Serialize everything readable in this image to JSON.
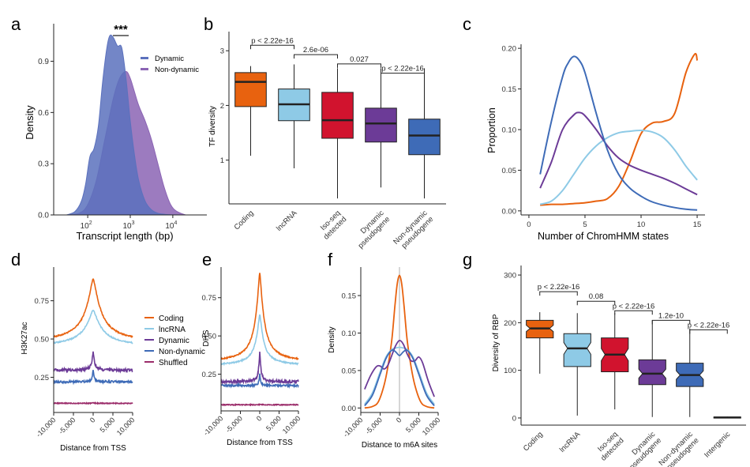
{
  "colors": {
    "coding": "#e8620f",
    "lncrna": "#8ecae6",
    "isoseq": "#d1132e",
    "dynpseudo": "#6c3b97",
    "nondynpseudo": "#3e6bb7",
    "shuffled": "#9b2c6a",
    "intergenic": "#bbbbbb",
    "dynamic_fill": "#5b71bd",
    "nondynamic_fill": "#8b64b4"
  },
  "chart_data": [
    {
      "id": "a",
      "label": "a",
      "type": "area",
      "title": "",
      "xlabel": "Transcript length (bp)",
      "ylabel": "Density",
      "xscale": "log10",
      "xlim": [
        1.2,
        4.8
      ],
      "ylim": [
        0,
        1.12
      ],
      "xticks": [
        {
          "v": 2,
          "base": "10",
          "exp": "2"
        },
        {
          "v": 3,
          "base": "10",
          "exp": "3"
        },
        {
          "v": 4,
          "base": "10",
          "exp": "4"
        }
      ],
      "yticks": [
        "0.0",
        "0.3",
        "0.6",
        "0.9"
      ],
      "yticks_v": [
        0,
        0.3,
        0.6,
        0.9
      ],
      "significance": "***",
      "legend": [
        "Dynamic",
        "Non-dynamic"
      ],
      "series": [
        {
          "name": "Dynamic",
          "x": [
            1.5,
            1.7,
            1.85,
            1.95,
            2.05,
            2.15,
            2.25,
            2.35,
            2.45,
            2.52,
            2.6,
            2.7,
            2.8,
            2.9,
            3.0,
            3.1,
            3.2,
            3.35,
            3.5,
            3.65,
            3.8,
            3.95,
            4.2
          ],
          "values": [
            0,
            0.02,
            0.08,
            0.18,
            0.34,
            0.39,
            0.52,
            0.78,
            0.98,
            1.05,
            1.04,
            0.99,
            0.98,
            0.8,
            0.55,
            0.35,
            0.2,
            0.08,
            0.03,
            0.01,
            0.004,
            0.001,
            0
          ]
        },
        {
          "name": "Non-dynamic",
          "x": [
            1.5,
            1.8,
            2.0,
            2.2,
            2.4,
            2.6,
            2.75,
            2.9,
            3.0,
            3.1,
            3.2,
            3.35,
            3.5,
            3.65,
            3.8,
            3.95,
            4.1,
            4.3
          ],
          "values": [
            0,
            0.01,
            0.06,
            0.2,
            0.44,
            0.68,
            0.8,
            0.84,
            0.8,
            0.72,
            0.64,
            0.55,
            0.44,
            0.3,
            0.16,
            0.06,
            0.02,
            0
          ]
        }
      ]
    },
    {
      "id": "b",
      "label": "b",
      "type": "box",
      "ylabel": "TF diversity",
      "ylim": [
        0.2,
        3.35
      ],
      "yticks": [
        "1",
        "2",
        "3"
      ],
      "yticks_v": [
        1,
        2,
        3
      ],
      "categories": [
        "Coding",
        "lncRNA",
        "Iso-seq detected",
        "Dynamic pseudogene",
        "Non-dynamic pseudogene"
      ],
      "category_lines": [
        [
          "Coding"
        ],
        [
          "lncRNA"
        ],
        [
          "Iso-seq",
          "detected"
        ],
        [
          "Dynamic",
          "pseudogene"
        ],
        [
          "Non-dynamic",
          "pseudogene"
        ]
      ],
      "boxes": [
        {
          "min": 1.08,
          "q1": 1.98,
          "median": 2.43,
          "q3": 2.6,
          "max": 2.72
        },
        {
          "min": 0.85,
          "q1": 1.72,
          "median": 2.02,
          "q3": 2.3,
          "max": 2.75
        },
        {
          "min": 0.3,
          "q1": 1.4,
          "median": 1.73,
          "q3": 2.24,
          "max": 2.68
        },
        {
          "min": 0.5,
          "q1": 1.33,
          "median": 1.67,
          "q3": 1.95,
          "max": 2.68
        },
        {
          "min": 0.3,
          "q1": 1.1,
          "median": 1.45,
          "q3": 1.75,
          "max": 2.68
        }
      ],
      "comparisons": [
        {
          "from": 0,
          "to": 1,
          "text": "p < 2.22e-16",
          "level": 3.1
        },
        {
          "from": 1,
          "to": 2,
          "text": "2.6e-06",
          "level": 2.93
        },
        {
          "from": 2,
          "to": 3,
          "text": "0.027",
          "level": 2.76
        },
        {
          "from": 3,
          "to": 4,
          "text": "p < 2.22e-16",
          "level": 2.59
        }
      ]
    },
    {
      "id": "c",
      "label": "c",
      "type": "line",
      "xlabel": "Number of ChromHMM states",
      "ylabel": "Proportion",
      "xlim": [
        -0.7,
        15.7
      ],
      "ylim": [
        -0.005,
        0.205
      ],
      "xticks": [
        "0",
        "5",
        "10",
        "15"
      ],
      "xticks_v": [
        0,
        5,
        10,
        15
      ],
      "yticks": [
        "0.00",
        "0.05",
        "0.10",
        "0.15",
        "0.20"
      ],
      "yticks_v": [
        0,
        0.05,
        0.1,
        0.15,
        0.2
      ],
      "series": [
        {
          "name": "Coding",
          "color_key": "coding",
          "x": [
            1,
            2,
            3,
            4,
            5,
            6,
            7,
            8,
            9,
            10,
            11,
            12,
            13,
            14,
            14.8,
            15
          ],
          "values": [
            0.007,
            0.008,
            0.008,
            0.009,
            0.01,
            0.012,
            0.015,
            0.03,
            0.06,
            0.095,
            0.108,
            0.11,
            0.12,
            0.17,
            0.193,
            0.185
          ]
        },
        {
          "name": "lncRNA",
          "color_key": "lncrna",
          "x": [
            1,
            2,
            3,
            4,
            5,
            6,
            7,
            8,
            9,
            10,
            11,
            12,
            13,
            14,
            15
          ],
          "values": [
            0.008,
            0.012,
            0.025,
            0.045,
            0.065,
            0.08,
            0.09,
            0.096,
            0.098,
            0.099,
            0.097,
            0.09,
            0.075,
            0.055,
            0.038
          ]
        },
        {
          "name": "Dynamic pseudogene",
          "color_key": "dynpseudo",
          "x": [
            1,
            2,
            3,
            4,
            4.5,
            5,
            6,
            7,
            8,
            9,
            10,
            11,
            12,
            13,
            14,
            15
          ],
          "values": [
            0.028,
            0.06,
            0.1,
            0.118,
            0.121,
            0.117,
            0.1,
            0.08,
            0.065,
            0.056,
            0.05,
            0.045,
            0.04,
            0.034,
            0.027,
            0.02
          ]
        },
        {
          "name": "Non-dynamic pseudogene",
          "color_key": "nondynpseudo",
          "x": [
            1,
            2,
            3,
            3.5,
            4,
            4.5,
            5,
            6,
            7,
            8,
            9,
            10,
            11,
            12,
            13,
            14,
            15
          ],
          "values": [
            0.045,
            0.11,
            0.165,
            0.182,
            0.19,
            0.185,
            0.17,
            0.12,
            0.075,
            0.045,
            0.028,
            0.018,
            0.011,
            0.007,
            0.004,
            0.002,
            0.001
          ]
        }
      ]
    },
    {
      "id": "d",
      "label": "d",
      "type": "line",
      "xlabel": "Distance from TSS",
      "ylabel": "H3K27ac",
      "xlim": [
        -10000,
        10000
      ],
      "ylim": [
        0.02,
        0.97
      ],
      "xticks": [
        "-10,000",
        "-5,000",
        "0",
        "5,000",
        "10,000"
      ],
      "xticks_v": [
        -10000,
        -5000,
        0,
        5000,
        10000
      ],
      "yticks": [
        "0.25",
        "0.50",
        "0.75"
      ],
      "yticks_v": [
        0.25,
        0.5,
        0.75
      ],
      "legend": [
        "Coding",
        "lncRNA",
        "Dynamic",
        "Non-dynamic",
        "Shuffled"
      ],
      "series": [
        {
          "name": "Coding",
          "color_key": "coding",
          "base": 0.475,
          "peak": 0.895,
          "width": 2000,
          "noise": 0.004
        },
        {
          "name": "lncRNA",
          "color_key": "lncrna",
          "base": 0.45,
          "peak": 0.69,
          "width": 2200,
          "noise": 0.004
        },
        {
          "name": "Dynamic",
          "color_key": "dynpseudo",
          "base": 0.295,
          "peak": 0.42,
          "width": 300,
          "noise": 0.01
        },
        {
          "name": "Non-dynamic",
          "color_key": "nondynpseudo",
          "base": 0.22,
          "peak": 0.3,
          "width": 200,
          "noise": 0.007
        },
        {
          "name": "Shuffled",
          "color_key": "shuffled",
          "base": 0.08,
          "peak": 0.082,
          "width": 500,
          "noise": 0.003
        }
      ]
    },
    {
      "id": "e",
      "label": "e",
      "type": "line",
      "xlabel": "Distance from TSS",
      "ylabel": "DHS",
      "xlim": [
        -10000,
        10000
      ],
      "ylim": [
        0.01,
        0.95
      ],
      "xticks": [
        "-10,000",
        "-5,000",
        "0",
        "5,000",
        "10,000"
      ],
      "xticks_v": [
        -10000,
        -5000,
        0,
        5000,
        10000
      ],
      "yticks": [
        "0.25",
        "0.50",
        "0.75"
      ],
      "yticks_v": [
        0.25,
        0.5,
        0.75
      ],
      "series": [
        {
          "name": "Coding",
          "color_key": "coding",
          "base": 0.325,
          "peak": 0.91,
          "width": 1100,
          "noise": 0.004
        },
        {
          "name": "lncRNA",
          "color_key": "lncrna",
          "base": 0.305,
          "peak": 0.64,
          "width": 1000,
          "noise": 0.004
        },
        {
          "name": "Dynamic",
          "color_key": "dynpseudo",
          "base": 0.2,
          "peak": 0.4,
          "width": 250,
          "noise": 0.01
        },
        {
          "name": "Non-dynamic",
          "color_key": "nondynpseudo",
          "base": 0.175,
          "peak": 0.25,
          "width": 180,
          "noise": 0.006
        },
        {
          "name": "Shuffled",
          "color_key": "shuffled",
          "base": 0.05,
          "peak": 0.052,
          "width": 400,
          "noise": 0.003
        }
      ]
    },
    {
      "id": "f",
      "label": "f",
      "type": "line",
      "xlabel": "Distance to m6A sites",
      "ylabel": "Density",
      "xlim": [
        -10000,
        10000
      ],
      "ylim": [
        -0.006,
        0.188
      ],
      "xticks": [
        "-10,000",
        "-5,000",
        "0",
        "5,000",
        "10,000"
      ],
      "xticks_v": [
        -10000,
        -5000,
        0,
        5000,
        10000
      ],
      "yticks": [
        "0.00",
        "0.05",
        "0.10",
        "0.15"
      ],
      "yticks_v": [
        0,
        0.05,
        0.1,
        0.15
      ],
      "vline": 0,
      "series": [
        {
          "name": "Coding",
          "color_key": "coding",
          "x": [
            -9000,
            -7000,
            -5500,
            -4000,
            -3000,
            -2000,
            -1200,
            -600,
            0,
            600,
            1200,
            2000,
            3000,
            4000,
            5500,
            7000,
            9000
          ],
          "values": [
            0,
            0.002,
            0.008,
            0.03,
            0.055,
            0.09,
            0.135,
            0.165,
            0.177,
            0.165,
            0.135,
            0.09,
            0.055,
            0.03,
            0.008,
            0.002,
            0
          ]
        },
        {
          "name": "lncRNA",
          "color_key": "lncrna",
          "x": [
            -9000,
            -7000,
            -5000,
            -3500,
            -2000,
            -1000,
            0,
            1000,
            2000,
            3500,
            5000,
            7000,
            9000
          ],
          "values": [
            0.005,
            0.02,
            0.048,
            0.068,
            0.078,
            0.08,
            0.081,
            0.08,
            0.078,
            0.068,
            0.048,
            0.02,
            0.005
          ]
        },
        {
          "name": "Dynamic pseudogene",
          "color_key": "dynpseudo",
          "x": [
            -9000,
            -7500,
            -6000,
            -5000,
            -4000,
            -3000,
            -2000,
            -1000,
            0,
            1000,
            2000,
            3000,
            4000,
            5000,
            6000,
            7500,
            9000
          ],
          "values": [
            0.025,
            0.043,
            0.055,
            0.056,
            0.052,
            0.057,
            0.07,
            0.083,
            0.09,
            0.085,
            0.072,
            0.063,
            0.063,
            0.068,
            0.06,
            0.035,
            0.015
          ]
        },
        {
          "name": "Non-dynamic pseudogene",
          "color_key": "nondynpseudo",
          "x": [
            -9000,
            -7000,
            -5000,
            -3500,
            -2000,
            -1000,
            0,
            1000,
            2000,
            3500,
            5000,
            7000,
            9000
          ],
          "values": [
            0.003,
            0.017,
            0.045,
            0.066,
            0.077,
            0.075,
            0.07,
            0.075,
            0.077,
            0.066,
            0.045,
            0.017,
            0.003
          ]
        }
      ]
    },
    {
      "id": "g",
      "label": "g",
      "type": "box",
      "ylabel": "Diversity of RBP",
      "ylim": [
        -15,
        320
      ],
      "yticks": [
        "0",
        "100",
        "200",
        "300"
      ],
      "yticks_v": [
        0,
        100,
        200,
        300
      ],
      "categories": [
        "Coding",
        "lncRNA",
        "Iso-seq detected",
        "Dynamic pseudogene",
        "Non-dynamic pseudogene",
        "Intergenic"
      ],
      "category_lines": [
        [
          "Coding"
        ],
        [
          "lncRNA"
        ],
        [
          "Iso-seq",
          "detected"
        ],
        [
          "Dynamic",
          "pseudogene"
        ],
        [
          "Non-dynamic",
          "pseudogene"
        ],
        [
          "Intergenic"
        ]
      ],
      "boxes": [
        {
          "min": 93,
          "q1": 168,
          "median": 188,
          "q3": 205,
          "max": 222
        },
        {
          "min": 5,
          "q1": 108,
          "median": 146,
          "q3": 177,
          "max": 220
        },
        {
          "min": 18,
          "q1": 97,
          "median": 133,
          "q3": 168,
          "max": 220
        },
        {
          "min": 2,
          "q1": 70,
          "median": 93,
          "q3": 122,
          "max": 205
        },
        {
          "min": 2,
          "q1": 66,
          "median": 90,
          "q3": 115,
          "max": 188
        },
        {
          "min": 0,
          "q1": 0,
          "median": 1,
          "q3": 2,
          "max": 3
        }
      ],
      "comparisons": [
        {
          "from": 0,
          "to": 1,
          "text": "p < 2.22e-16",
          "level": 265
        },
        {
          "from": 1,
          "to": 2,
          "text": "0.08",
          "level": 245
        },
        {
          "from": 2,
          "to": 3,
          "text": "p < 2.22e-16",
          "level": 225
        },
        {
          "from": 3,
          "to": 4,
          "text": "1.2e-10",
          "level": 205
        },
        {
          "from": 4,
          "to": 5,
          "text": "p < 2.22e-16",
          "level": 185
        }
      ]
    }
  ]
}
